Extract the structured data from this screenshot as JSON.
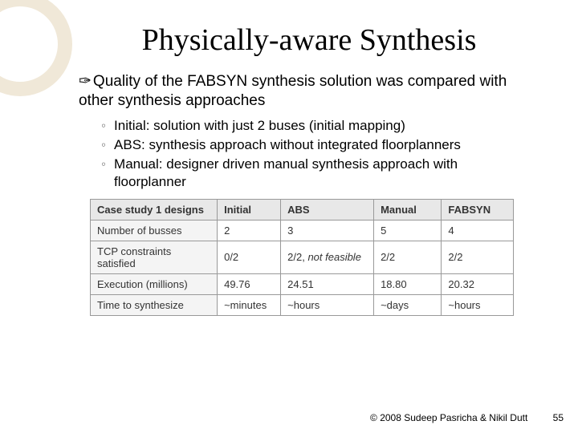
{
  "title": "Physically-aware Synthesis",
  "main_bullet": "Quality of the FABSYN synthesis solution was compared with other synthesis approaches",
  "sub_bullets": [
    "Initial: solution with just 2 buses (initial mapping)",
    "ABS: synthesis approach without integrated floorplanners",
    "Manual: designer driven manual synthesis approach with floorplanner"
  ],
  "table": {
    "columns": [
      "Case study 1 designs",
      "Initial",
      "ABS",
      "Manual",
      "FABSYN"
    ],
    "rows": [
      {
        "label": "Number of busses",
        "cells": [
          "2",
          "3",
          "5",
          "4"
        ]
      },
      {
        "label": "TCP constraints satisfied",
        "cells": [
          "0/2",
          "2/2, not feasible",
          "2/2",
          "2/2"
        ],
        "ital_idx": 1
      },
      {
        "label": "Execution (millions)",
        "cells": [
          "49.76",
          "24.51",
          "18.80",
          "20.32"
        ]
      },
      {
        "label": "Time to synthesize",
        "cells": [
          "~minutes",
          "~hours",
          "~days",
          "~hours"
        ]
      }
    ],
    "col_widths": [
      "30%",
      "15%",
      "22%",
      "16%",
      "17%"
    ],
    "header_bg": "#e8e8e8",
    "border_color": "#999999"
  },
  "footer": {
    "copyright": "© 2008 Sudeep Pasricha  & Nikil Dutt",
    "page": "55"
  },
  "colors": {
    "decoration": "#f0e8d8",
    "subbullet_ring": "#808080"
  }
}
